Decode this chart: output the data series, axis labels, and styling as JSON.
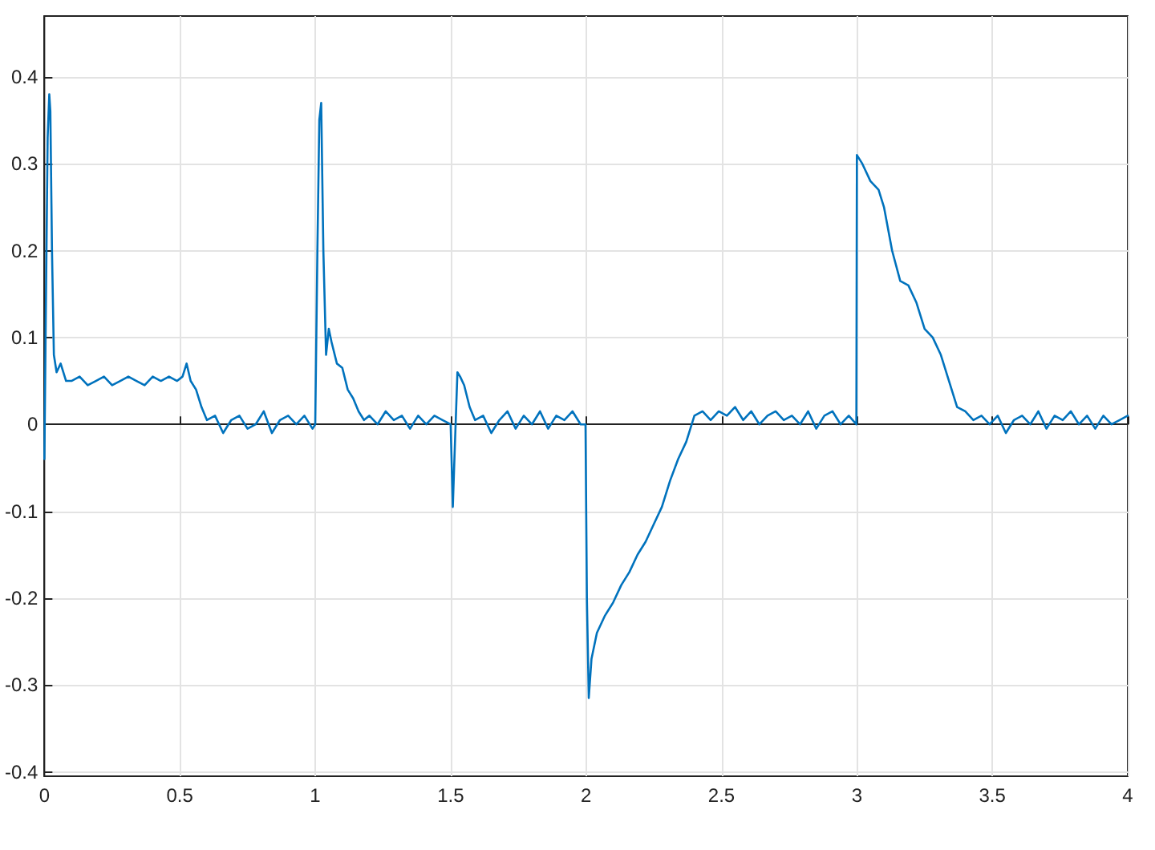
{
  "chart_data": {
    "type": "line",
    "x": [
      0,
      0.005,
      0.012,
      0.018,
      0.022,
      0.028,
      0.035,
      0.045,
      0.06,
      0.08,
      0.1,
      0.13,
      0.16,
      0.19,
      0.22,
      0.25,
      0.28,
      0.31,
      0.34,
      0.37,
      0.4,
      0.43,
      0.46,
      0.49,
      0.51,
      0.525,
      0.54,
      0.56,
      0.58,
      0.6,
      0.63,
      0.66,
      0.69,
      0.72,
      0.75,
      0.78,
      0.81,
      0.84,
      0.87,
      0.9,
      0.93,
      0.96,
      0.99,
      1.0,
      1.008,
      1.015,
      1.022,
      1.03,
      1.04,
      1.05,
      1.06,
      1.08,
      1.1,
      1.12,
      1.14,
      1.16,
      1.18,
      1.2,
      1.23,
      1.26,
      1.29,
      1.32,
      1.35,
      1.38,
      1.41,
      1.44,
      1.47,
      1.5,
      1.508,
      1.515,
      1.525,
      1.535,
      1.55,
      1.57,
      1.59,
      1.62,
      1.65,
      1.68,
      1.71,
      1.74,
      1.77,
      1.8,
      1.83,
      1.86,
      1.89,
      1.92,
      1.95,
      1.98,
      1.998,
      2.003,
      2.01,
      2.02,
      2.04,
      2.07,
      2.1,
      2.13,
      2.16,
      2.19,
      2.22,
      2.25,
      2.28,
      2.31,
      2.34,
      2.37,
      2.4,
      2.43,
      2.46,
      2.49,
      2.52,
      2.55,
      2.58,
      2.61,
      2.64,
      2.67,
      2.7,
      2.73,
      2.76,
      2.79,
      2.82,
      2.85,
      2.88,
      2.91,
      2.94,
      2.97,
      2.998,
      3.0,
      3.02,
      3.05,
      3.08,
      3.1,
      3.13,
      3.16,
      3.19,
      3.22,
      3.25,
      3.28,
      3.31,
      3.34,
      3.37,
      3.4,
      3.43,
      3.46,
      3.49,
      3.52,
      3.55,
      3.58,
      3.61,
      3.64,
      3.67,
      3.7,
      3.73,
      3.76,
      3.79,
      3.82,
      3.85,
      3.88,
      3.91,
      3.94,
      3.97,
      4.0
    ],
    "values": [
      -0.04,
      0.12,
      0.33,
      0.38,
      0.36,
      0.2,
      0.08,
      0.06,
      0.07,
      0.05,
      0.05,
      0.055,
      0.045,
      0.05,
      0.055,
      0.045,
      0.05,
      0.055,
      0.05,
      0.045,
      0.055,
      0.05,
      0.055,
      0.05,
      0.055,
      0.07,
      0.05,
      0.04,
      0.02,
      0.005,
      0.01,
      -0.01,
      0.005,
      0.01,
      -0.005,
      0.0,
      0.015,
      -0.01,
      0.005,
      0.01,
      0.0,
      0.01,
      -0.005,
      0.0,
      0.2,
      0.35,
      0.37,
      0.2,
      0.08,
      0.11,
      0.095,
      0.07,
      0.065,
      0.04,
      0.03,
      0.015,
      0.005,
      0.01,
      0.0,
      0.015,
      0.005,
      0.01,
      -0.005,
      0.01,
      0.0,
      0.01,
      0.005,
      0.0,
      -0.095,
      -0.03,
      0.06,
      0.055,
      0.045,
      0.02,
      0.005,
      0.01,
      -0.01,
      0.005,
      0.015,
      -0.005,
      0.01,
      0.0,
      0.015,
      -0.005,
      0.01,
      0.005,
      0.015,
      0.0,
      0.0,
      -0.2,
      -0.315,
      -0.27,
      -0.24,
      -0.22,
      -0.205,
      -0.185,
      -0.17,
      -0.15,
      -0.135,
      -0.115,
      -0.095,
      -0.065,
      -0.04,
      -0.02,
      0.01,
      0.015,
      0.005,
      0.015,
      0.01,
      0.02,
      0.005,
      0.015,
      0.0,
      0.01,
      0.015,
      0.005,
      0.01,
      0.0,
      0.015,
      -0.005,
      0.01,
      0.015,
      0.0,
      0.01,
      0.0,
      0.31,
      0.3,
      0.28,
      0.27,
      0.25,
      0.2,
      0.165,
      0.16,
      0.14,
      0.11,
      0.1,
      0.08,
      0.05,
      0.02,
      0.015,
      0.005,
      0.01,
      0.0,
      0.01,
      -0.01,
      0.005,
      0.01,
      0.0,
      0.015,
      -0.005,
      0.01,
      0.005,
      0.015,
      0.0,
      0.01,
      -0.005,
      0.01,
      0.0,
      0.005,
      0.01
    ],
    "color": "#0072bd",
    "xlim": [
      0,
      4
    ],
    "xticks": [
      0,
      0.5,
      1,
      1.5,
      2,
      2.5,
      3,
      3.5,
      4
    ],
    "ylim": [
      -0.405,
      0.47
    ],
    "yticks": [
      -0.4,
      -0.3,
      -0.2,
      -0.1,
      0,
      0.1,
      0.2,
      0.3,
      0.4
    ],
    "grid": true,
    "marker": "none",
    "line_style": "solid"
  }
}
